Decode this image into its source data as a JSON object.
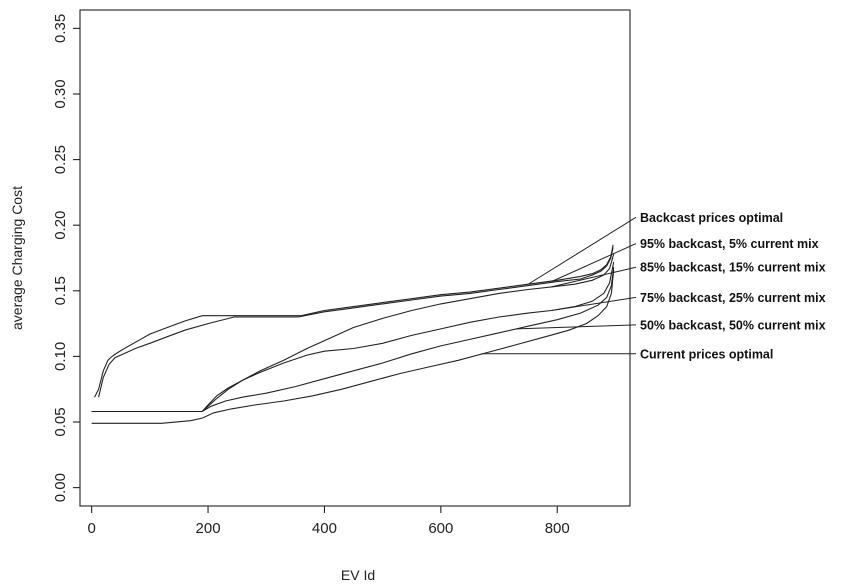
{
  "chart_data": {
    "type": "line",
    "title": "",
    "xlabel": "EV Id",
    "ylabel": "average Charging Cost",
    "xlim": [
      -20,
      925
    ],
    "ylim": [
      -0.014,
      0.364
    ],
    "xticks": [
      0,
      200,
      400,
      600,
      800
    ],
    "yticks": [
      0.0,
      0.05,
      0.1,
      0.15,
      0.2,
      0.25,
      0.3,
      0.35
    ],
    "xtick_labels": [
      "0",
      "200",
      "400",
      "600",
      "800"
    ],
    "ytick_labels": [
      "0.00",
      "0.05",
      "0.10",
      "0.15",
      "0.20",
      "0.25",
      "0.30",
      "0.35"
    ],
    "grid": false,
    "legend_placement": "right",
    "series": [
      {
        "name": "Backcast prices optimal",
        "label_y": 0.206,
        "pointer": [
          750,
          0.155
        ],
        "x": [
          5,
          12,
          20,
          28,
          35,
          45,
          60,
          80,
          100,
          130,
          160,
          190,
          360,
          400,
          450,
          500,
          550,
          600,
          650,
          700,
          750,
          800,
          840,
          860,
          875,
          885,
          892,
          896
        ],
        "y": [
          0.069,
          0.075,
          0.089,
          0.097,
          0.1,
          0.103,
          0.107,
          0.112,
          0.117,
          0.122,
          0.127,
          0.131,
          0.131,
          0.135,
          0.138,
          0.141,
          0.144,
          0.147,
          0.149,
          0.152,
          0.155,
          0.158,
          0.161,
          0.163,
          0.166,
          0.17,
          0.176,
          0.185
        ]
      },
      {
        "name": "95% backcast, 5% current mix",
        "label_y": 0.186,
        "pointer": [
          790,
          0.157
        ],
        "x": [
          12,
          20,
          30,
          40,
          55,
          75,
          100,
          130,
          160,
          200,
          245,
          355,
          400,
          450,
          500,
          550,
          600,
          650,
          700,
          750,
          800,
          840,
          860,
          875,
          885,
          892,
          896
        ],
        "y": [
          0.069,
          0.084,
          0.094,
          0.099,
          0.102,
          0.106,
          0.11,
          0.115,
          0.12,
          0.125,
          0.13,
          0.13,
          0.134,
          0.137,
          0.14,
          0.143,
          0.146,
          0.148,
          0.151,
          0.154,
          0.157,
          0.159,
          0.162,
          0.165,
          0.169,
          0.175,
          0.183
        ]
      },
      {
        "name": "85% backcast, 15% current mix",
        "label_y": 0.168,
        "pointer": [
          790,
          0.153
        ],
        "x": [
          0,
          190,
          200,
          215,
          235,
          260,
          290,
          330,
          370,
          410,
          450,
          500,
          550,
          600,
          650,
          700,
          750,
          790,
          830,
          860,
          880,
          890,
          897
        ],
        "y": [
          0.058,
          0.058,
          0.062,
          0.068,
          0.075,
          0.082,
          0.089,
          0.097,
          0.106,
          0.114,
          0.122,
          0.129,
          0.135,
          0.14,
          0.144,
          0.148,
          0.151,
          0.153,
          0.155,
          0.158,
          0.162,
          0.167,
          0.178
        ]
      },
      {
        "name": "75% backcast, 25% current mix",
        "label_y": 0.145,
        "pointer": [
          790,
          0.135
        ],
        "x": [
          0,
          190,
          200,
          215,
          235,
          260,
          290,
          330,
          370,
          400,
          450,
          500,
          550,
          600,
          650,
          700,
          750,
          790,
          830,
          860,
          880,
          890,
          897
        ],
        "y": [
          0.058,
          0.058,
          0.063,
          0.07,
          0.076,
          0.082,
          0.088,
          0.095,
          0.101,
          0.104,
          0.106,
          0.11,
          0.116,
          0.121,
          0.126,
          0.13,
          0.133,
          0.135,
          0.138,
          0.142,
          0.148,
          0.156,
          0.172
        ]
      },
      {
        "name": "50% backcast, 50% current mix",
        "label_y": 0.124,
        "pointer": [
          730,
          0.121
        ],
        "x": [
          0,
          190,
          205,
          230,
          260,
          300,
          350,
          400,
          450,
          500,
          550,
          600,
          650,
          700,
          750,
          800,
          840,
          870,
          885,
          893,
          897
        ],
        "y": [
          0.058,
          0.058,
          0.062,
          0.066,
          0.069,
          0.072,
          0.077,
          0.083,
          0.089,
          0.095,
          0.102,
          0.108,
          0.113,
          0.118,
          0.123,
          0.128,
          0.133,
          0.139,
          0.145,
          0.154,
          0.168
        ]
      },
      {
        "name": "Current prices optimal",
        "label_y": 0.102,
        "pointer": [
          670,
          0.102
        ],
        "x": [
          0,
          120,
          170,
          190,
          210,
          240,
          280,
          330,
          380,
          430,
          480,
          530,
          580,
          630,
          680,
          730,
          780,
          820,
          850,
          870,
          885,
          893,
          897
        ],
        "y": [
          0.049,
          0.049,
          0.051,
          0.053,
          0.057,
          0.06,
          0.063,
          0.066,
          0.07,
          0.075,
          0.081,
          0.087,
          0.092,
          0.097,
          0.103,
          0.109,
          0.115,
          0.12,
          0.125,
          0.131,
          0.138,
          0.148,
          0.166
        ]
      }
    ]
  }
}
